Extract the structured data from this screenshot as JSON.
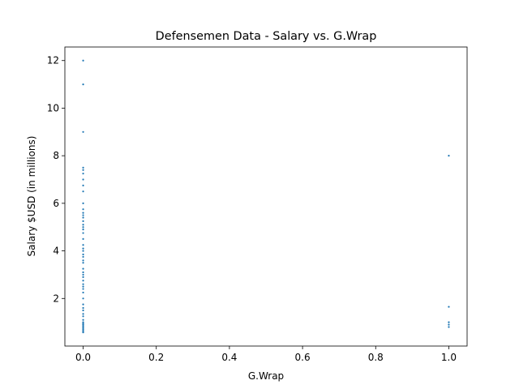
{
  "chart_data": {
    "type": "scatter",
    "title": "Defensemen Data - Salary vs. G.Wrap",
    "xlabel": "G.Wrap",
    "ylabel": "Salary $USD (in millions)",
    "color": "#1f77b4",
    "x": [
      0,
      0,
      0,
      0,
      0,
      0,
      0,
      0,
      0,
      0,
      0,
      0,
      0,
      0,
      0,
      0,
      0,
      0,
      0,
      0,
      0,
      0,
      0,
      0,
      0,
      0,
      0,
      0,
      0,
      0,
      0,
      0,
      0,
      0,
      0,
      0,
      0,
      0,
      0,
      0,
      0,
      0,
      0,
      0,
      0,
      0,
      0,
      0,
      0,
      0,
      0,
      0,
      0,
      1,
      1,
      1,
      1,
      1
    ],
    "y": [
      12,
      11,
      9,
      7.5,
      7.4,
      7.25,
      7,
      6.75,
      6.5,
      6,
      5.75,
      5.6,
      5.5,
      5.4,
      5.25,
      5.1,
      5,
      4.9,
      4.75,
      4.5,
      4.25,
      4.1,
      4,
      3.85,
      3.75,
      3.6,
      3.5,
      3.25,
      3.1,
      3,
      2.9,
      2.75,
      2.6,
      2.5,
      2.4,
      2.25,
      2,
      1.75,
      1.6,
      1.5,
      1.35,
      1.25,
      1.1,
      1,
      0.95,
      0.9,
      0.85,
      0.8,
      0.75,
      0.7,
      0.65,
      0.6,
      0.575,
      8,
      1.65,
      1,
      0.9,
      0.8
    ],
    "xlim": [
      -0.05,
      1.05
    ],
    "ylim": [
      0,
      12.57
    ],
    "xticks": [
      {
        "value": 0,
        "label": "0.0"
      },
      0.2,
      0.4,
      0.6,
      0.8,
      {
        "value": 1,
        "label": "1.0"
      }
    ],
    "yticks": [
      2,
      4,
      6,
      8,
      10,
      12
    ]
  }
}
